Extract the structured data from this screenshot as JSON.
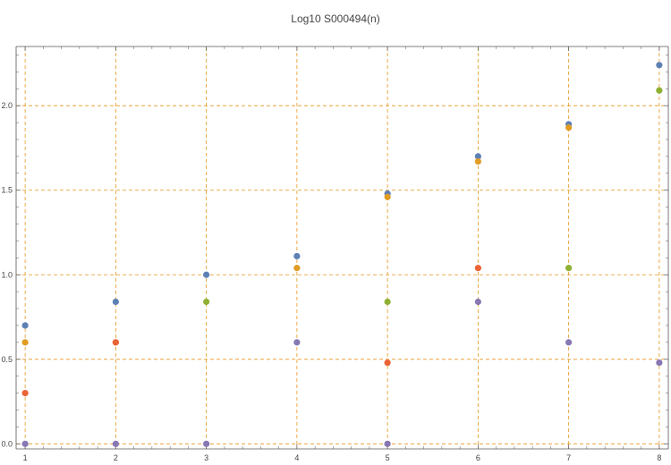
{
  "chart_data": {
    "type": "scatter",
    "title": "Log10 S000494(n)",
    "xlabel": "",
    "ylabel": "",
    "xlim": [
      0.9,
      8.1
    ],
    "ylim": [
      -0.03,
      2.35
    ],
    "x_ticks": [
      1,
      2,
      3,
      4,
      5,
      6,
      7,
      8
    ],
    "y_ticks": [
      0.0,
      0.5,
      1.0,
      1.5,
      2.0
    ],
    "x_tick_labels": [
      "1",
      "2",
      "3",
      "4",
      "5",
      "6",
      "7",
      "8"
    ],
    "y_tick_labels": [
      "0.0",
      "0.5",
      "1.0",
      "1.5",
      "2.0"
    ],
    "grid": true,
    "grid_color": "#e8951e",
    "axis_color": "#555555",
    "series": [
      {
        "color": "#5e81b5",
        "points": [
          [
            1,
            0.7
          ],
          [
            2,
            0.84
          ],
          [
            3,
            1.0
          ],
          [
            4,
            1.11
          ],
          [
            5,
            1.48
          ],
          [
            6,
            1.7
          ],
          [
            7,
            1.89
          ],
          [
            8,
            2.24
          ]
        ]
      },
      {
        "color": "#e19c24",
        "points": [
          [
            1,
            0.6
          ],
          [
            2,
            0.6
          ],
          [
            4,
            1.04
          ],
          [
            5,
            1.46
          ],
          [
            6,
            1.67
          ],
          [
            7,
            1.87
          ]
        ]
      },
      {
        "color": "#8fb032",
        "points": [
          [
            3,
            0.84
          ],
          [
            5,
            0.84
          ],
          [
            7,
            1.04
          ],
          [
            8,
            2.09
          ]
        ]
      },
      {
        "color": "#eb6235",
        "points": [
          [
            1,
            0.3
          ],
          [
            2,
            0.6
          ],
          [
            5,
            0.48
          ],
          [
            6,
            1.04
          ]
        ]
      },
      {
        "color": "#8778b3",
        "points": [
          [
            1,
            0.0
          ],
          [
            2,
            0.0
          ],
          [
            3,
            0.0
          ],
          [
            4,
            0.6
          ],
          [
            5,
            0.0
          ],
          [
            6,
            0.84
          ],
          [
            7,
            0.6
          ],
          [
            8,
            0.48
          ]
        ]
      }
    ]
  }
}
